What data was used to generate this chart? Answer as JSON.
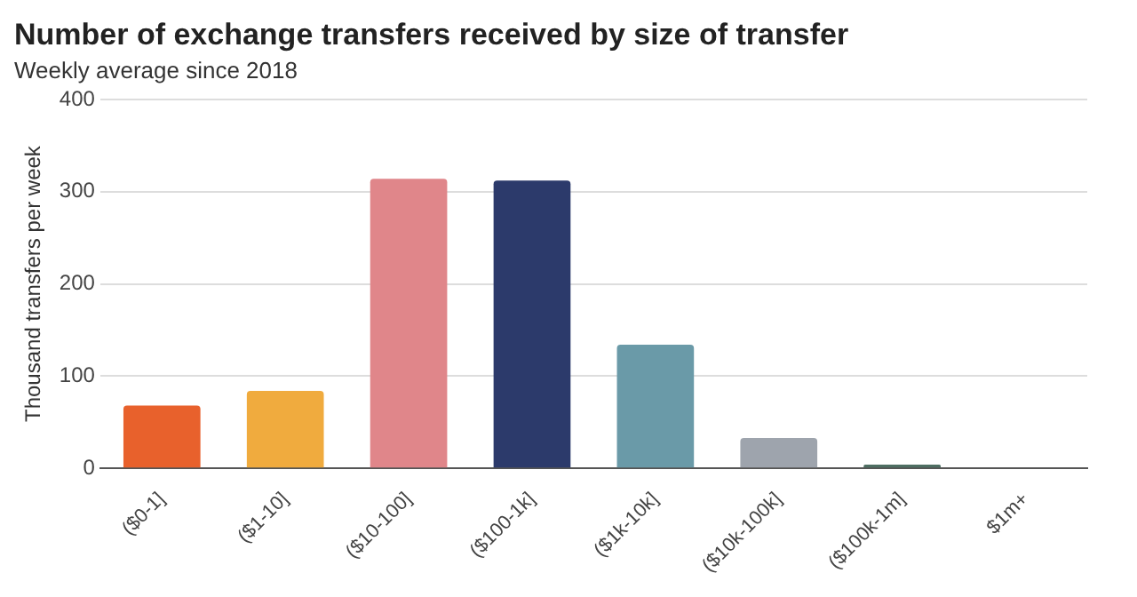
{
  "chart_data": {
    "type": "bar",
    "title": "Number of exchange transfers received by size of transfer",
    "subtitle": "Weekly average since 2018",
    "ylabel": "Thousand transfers per week",
    "categories": [
      "($0-1]",
      "($1-10]",
      "($10-100]",
      "($100-1k]",
      "($1k-10k]",
      "($10k-100k]",
      "($100k-1m]",
      "$1m+"
    ],
    "values": [
      68,
      84,
      314,
      312,
      134,
      33,
      4,
      1
    ],
    "colors": [
      "#e8612c",
      "#f0ab3e",
      "#e0868a",
      "#2c3a6b",
      "#6a9aa8",
      "#9ea4ad",
      "#4e6e62",
      "#6b7b78"
    ],
    "ylim": [
      0,
      400
    ],
    "yticks": [
      0,
      100,
      200,
      300,
      400
    ],
    "grid": "y",
    "legend": false
  }
}
